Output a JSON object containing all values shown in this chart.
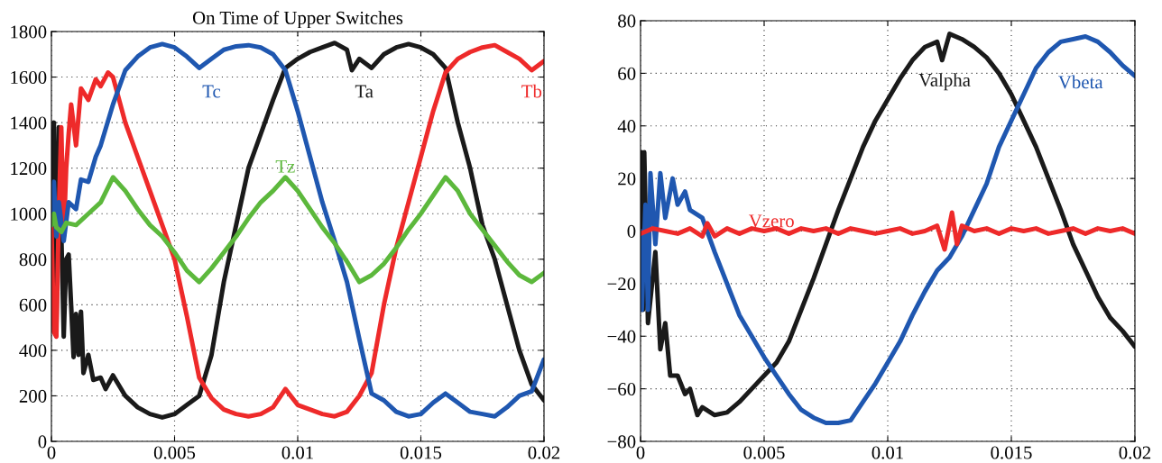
{
  "chart_data": [
    {
      "type": "line",
      "title": "On Time of Upper Switches",
      "xlim": [
        0,
        0.02
      ],
      "ylim": [
        0,
        1800
      ],
      "xticks": [
        0,
        0.005,
        0.01,
        0.015,
        0.02
      ],
      "yticks": [
        0,
        200,
        400,
        600,
        800,
        1000,
        1200,
        1400,
        1600,
        1800
      ],
      "grid": true,
      "legend": false,
      "line_style": "solid",
      "marker": "none",
      "series": [
        {
          "name": "Ta",
          "color": "#1a1a1a",
          "x": [
            0,
            0.0001,
            0.0002,
            0.0003,
            0.0005,
            0.0006,
            0.0007,
            0.0008,
            0.0009,
            0.001,
            0.0011,
            0.0012,
            0.0013,
            0.0015,
            0.0017,
            0.002,
            0.0022,
            0.0025,
            0.003,
            0.0035,
            0.004,
            0.0045,
            0.005,
            0.0055,
            0.006,
            0.0065,
            0.007,
            0.0075,
            0.008,
            0.0085,
            0.009,
            0.0095,
            0.01,
            0.0105,
            0.011,
            0.0115,
            0.012,
            0.0122,
            0.0125,
            0.013,
            0.0135,
            0.014,
            0.0145,
            0.015,
            0.0155,
            0.016,
            0.0165,
            0.017,
            0.0175,
            0.018,
            0.0185,
            0.019,
            0.0195,
            0.02
          ],
          "values": [
            1000,
            1400,
            500,
            1380,
            460,
            800,
            820,
            600,
            370,
            560,
            380,
            570,
            300,
            380,
            270,
            280,
            230,
            290,
            200,
            150,
            120,
            105,
            120,
            160,
            200,
            380,
            700,
            950,
            1200,
            1350,
            1500,
            1640,
            1680,
            1710,
            1730,
            1750,
            1720,
            1630,
            1680,
            1640,
            1700,
            1730,
            1745,
            1730,
            1700,
            1640,
            1400,
            1200,
            950,
            800,
            600,
            400,
            250,
            180
          ]
        },
        {
          "name": "Tb",
          "color": "#ee2a2a",
          "x": [
            0,
            0.0001,
            0.0002,
            0.0003,
            0.0004,
            0.0005,
            0.0006,
            0.0007,
            0.0008,
            0.001,
            0.0012,
            0.0015,
            0.0018,
            0.002,
            0.0023,
            0.0025,
            0.003,
            0.0035,
            0.004,
            0.0045,
            0.005,
            0.0055,
            0.006,
            0.0065,
            0.007,
            0.0075,
            0.008,
            0.0085,
            0.009,
            0.0095,
            0.01,
            0.0105,
            0.011,
            0.0115,
            0.012,
            0.0125,
            0.013,
            0.0135,
            0.014,
            0.0145,
            0.015,
            0.0155,
            0.016,
            0.0165,
            0.017,
            0.0175,
            0.018,
            0.0185,
            0.019,
            0.0195,
            0.02
          ],
          "values": [
            950,
            480,
            460,
            1000,
            1380,
            900,
            1200,
            1350,
            1480,
            1300,
            1550,
            1500,
            1590,
            1560,
            1620,
            1600,
            1400,
            1250,
            1100,
            950,
            800,
            550,
            280,
            190,
            140,
            120,
            110,
            120,
            150,
            230,
            160,
            140,
            120,
            110,
            130,
            200,
            300,
            600,
            850,
            1050,
            1250,
            1450,
            1620,
            1680,
            1710,
            1730,
            1740,
            1710,
            1680,
            1630,
            1670
          ]
        },
        {
          "name": "Tc",
          "color": "#1f57b0",
          "x": [
            0,
            0.0001,
            0.0002,
            0.0003,
            0.0005,
            0.0007,
            0.001,
            0.0012,
            0.0015,
            0.0018,
            0.002,
            0.0025,
            0.003,
            0.0035,
            0.004,
            0.0045,
            0.005,
            0.0055,
            0.006,
            0.0065,
            0.007,
            0.0075,
            0.008,
            0.0085,
            0.009,
            0.0095,
            0.01,
            0.0105,
            0.011,
            0.0115,
            0.012,
            0.0125,
            0.013,
            0.0135,
            0.014,
            0.0145,
            0.015,
            0.0155,
            0.016,
            0.0165,
            0.017,
            0.0175,
            0.018,
            0.0185,
            0.019,
            0.0195,
            0.02
          ],
          "values": [
            1000,
            1140,
            900,
            1050,
            880,
            1050,
            1020,
            1150,
            1140,
            1250,
            1300,
            1480,
            1630,
            1690,
            1730,
            1745,
            1730,
            1690,
            1640,
            1680,
            1720,
            1735,
            1740,
            1730,
            1700,
            1630,
            1450,
            1250,
            1050,
            880,
            700,
            450,
            210,
            180,
            130,
            110,
            120,
            170,
            210,
            170,
            130,
            120,
            110,
            150,
            200,
            220,
            360
          ]
        },
        {
          "name": "Tz",
          "color": "#5cb83c",
          "x": [
            0,
            0.0001,
            0.0002,
            0.0004,
            0.0006,
            0.001,
            0.0015,
            0.002,
            0.0025,
            0.003,
            0.0035,
            0.004,
            0.0045,
            0.005,
            0.0055,
            0.006,
            0.0065,
            0.007,
            0.0075,
            0.008,
            0.0085,
            0.009,
            0.0095,
            0.01,
            0.0105,
            0.011,
            0.0115,
            0.012,
            0.0125,
            0.013,
            0.0135,
            0.014,
            0.0145,
            0.015,
            0.0155,
            0.016,
            0.0165,
            0.017,
            0.0175,
            0.018,
            0.0185,
            0.019,
            0.0195,
            0.02
          ],
          "values": [
            950,
            1000,
            940,
            920,
            960,
            950,
            1000,
            1050,
            1160,
            1100,
            1020,
            950,
            900,
            830,
            750,
            700,
            760,
            830,
            900,
            980,
            1050,
            1100,
            1160,
            1100,
            1020,
            940,
            870,
            790,
            700,
            730,
            780,
            850,
            930,
            1000,
            1080,
            1160,
            1100,
            1000,
            930,
            860,
            790,
            730,
            700,
            740
          ]
        }
      ]
    },
    {
      "type": "line",
      "xlim": [
        0,
        0.02
      ],
      "ylim": [
        -80,
        80
      ],
      "xticks": [
        0,
        0.005,
        0.01,
        0.015,
        0.02
      ],
      "yticks": [
        {
          "value": -80,
          "label": "−80"
        },
        {
          "value": -60,
          "label": "−60"
        },
        {
          "value": -40,
          "label": "−40"
        },
        {
          "value": -20,
          "label": "−20"
        },
        0,
        20,
        40,
        60,
        80
      ],
      "grid": true,
      "legend": false,
      "line_style": "solid",
      "marker": "none",
      "series": [
        {
          "name": "Valpha",
          "color": "#1a1a1a",
          "x": [
            0,
            5e-05,
            0.0001,
            0.00015,
            0.0003,
            0.0006,
            0.0008,
            0.001,
            0.0012,
            0.0015,
            0.0018,
            0.002,
            0.0023,
            0.0025,
            0.003,
            0.0035,
            0.004,
            0.0045,
            0.005,
            0.0055,
            0.006,
            0.0065,
            0.007,
            0.0075,
            0.008,
            0.0085,
            0.009,
            0.0095,
            0.01,
            0.0105,
            0.011,
            0.0115,
            0.012,
            0.0122,
            0.0125,
            0.013,
            0.0135,
            0.014,
            0.0145,
            0.015,
            0.0155,
            0.016,
            0.0165,
            0.017,
            0.0175,
            0.018,
            0.0185,
            0.019,
            0.0195,
            0.02
          ],
          "values": [
            0,
            30,
            -30,
            30,
            -35,
            -8,
            -45,
            -35,
            -55,
            -55,
            -62,
            -60,
            -70,
            -67,
            -70,
            -69,
            -65,
            -60,
            -55,
            -50,
            -42,
            -30,
            -18,
            -5,
            8,
            20,
            32,
            42,
            50,
            58,
            65,
            70,
            72,
            65,
            75,
            73,
            70,
            66,
            60,
            52,
            42,
            32,
            20,
            8,
            -5,
            -15,
            -25,
            -33,
            -38,
            -44
          ]
        },
        {
          "name": "Vbeta",
          "color": "#1f57b0",
          "x": [
            0,
            5e-05,
            0.0002,
            0.0003,
            0.0004,
            0.0006,
            0.0008,
            0.001,
            0.0013,
            0.0015,
            0.0018,
            0.002,
            0.0025,
            0.003,
            0.0035,
            0.004,
            0.0045,
            0.005,
            0.0055,
            0.006,
            0.0065,
            0.007,
            0.0075,
            0.008,
            0.0085,
            0.009,
            0.0095,
            0.01,
            0.0105,
            0.011,
            0.0115,
            0.012,
            0.0125,
            0.013,
            0.0135,
            0.014,
            0.0145,
            0.015,
            0.0155,
            0.016,
            0.0165,
            0.017,
            0.0175,
            0.018,
            0.0185,
            0.019,
            0.0195,
            0.02
          ],
          "values": [
            0,
            -30,
            10,
            -30,
            22,
            -5,
            22,
            5,
            20,
            10,
            15,
            8,
            5,
            -8,
            -20,
            -32,
            -40,
            -48,
            -55,
            -62,
            -68,
            -71,
            -73,
            -73,
            -72,
            -65,
            -58,
            -50,
            -42,
            -32,
            -23,
            -15,
            -10,
            -2,
            8,
            18,
            32,
            42,
            52,
            62,
            68,
            72,
            73,
            74,
            72,
            68,
            63,
            59
          ]
        },
        {
          "name": "Vzero",
          "color": "#ee2a2a",
          "x": [
            0,
            0.0005,
            0.001,
            0.0015,
            0.002,
            0.0025,
            0.0027,
            0.003,
            0.0035,
            0.004,
            0.0045,
            0.005,
            0.0055,
            0.006,
            0.0065,
            0.007,
            0.0075,
            0.008,
            0.0085,
            0.009,
            0.0095,
            0.01,
            0.0105,
            0.011,
            0.0115,
            0.012,
            0.0123,
            0.0126,
            0.0128,
            0.013,
            0.0135,
            0.014,
            0.0145,
            0.015,
            0.0155,
            0.016,
            0.0165,
            0.017,
            0.0175,
            0.018,
            0.0185,
            0.019,
            0.0195,
            0.02
          ],
          "values": [
            -1,
            1,
            0,
            -1,
            1,
            -2,
            3,
            -2,
            1,
            -1,
            1,
            0,
            1,
            -1,
            1,
            0,
            1,
            -1,
            1,
            0,
            -1,
            0,
            1,
            -1,
            0,
            2,
            -7,
            7,
            -5,
            2,
            0,
            1,
            -1,
            1,
            0,
            1,
            -1,
            0,
            1,
            -1,
            1,
            0,
            1,
            -1
          ]
        }
      ]
    }
  ]
}
